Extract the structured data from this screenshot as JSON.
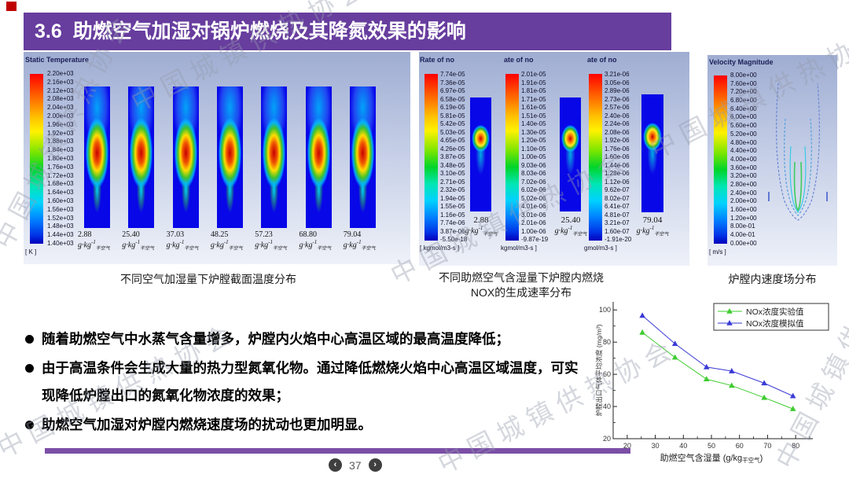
{
  "watermark": {
    "text": "中国城镇供热协会"
  },
  "title": {
    "number": "3.6",
    "text": "助燃空气加湿对锅炉燃烧及其降氮效果的影响"
  },
  "humid_unit": {
    "main": "g·kg",
    "sup": "-1",
    "sub": "干空气"
  },
  "temperature_panel": {
    "header": "Static Temperature",
    "unit": "[ K ]",
    "scale_values": [
      "2.20e+03",
      "2.16e+03",
      "2.12e+03",
      "2.08e+03",
      "2.04e+03",
      "2.00e+03",
      "1.96e+03",
      "1.92e+03",
      "1.88e+03",
      "1.84e+03",
      "1.80e+03",
      "1.76e+03",
      "1.72e+03",
      "1.68e+03",
      "1.64e+03",
      "1.60e+03",
      "1.56e+03",
      "1.52e+03",
      "1.48e+03",
      "1.44e+03",
      "1.40e+03"
    ],
    "columns": [
      "2.88",
      "25.40",
      "37.03",
      "48.25",
      "57.23",
      "68.80",
      "79.04"
    ],
    "caption": "不同空气加湿量下炉膛截面温度分布"
  },
  "rate_panels": [
    {
      "header": "Rate of no",
      "unit": "[ kgmol/m3-s ]",
      "column_value": "2.88",
      "scale_values": [
        "7.74e-05",
        "7.36e-05",
        "6.97e-05",
        "6.58e-05",
        "6.19e-05",
        "5.81e-05",
        "5.42e-05",
        "5.03e-05",
        "4.65e-05",
        "4.26e-05",
        "3.87e-05",
        "3.48e-05",
        "3.10e-05",
        "2.71e-05",
        "2.32e-05",
        "1.94e-05",
        "1.55e-05",
        "1.16e-05",
        "7.74e-06",
        "3.87e-06",
        "-5.50e-18"
      ]
    },
    {
      "header": "ate of no",
      "unit": "kgmol/m3-s ]",
      "column_value": "25.40",
      "scale_values": [
        "2.01e-05",
        "1.91e-05",
        "1.81e-05",
        "1.71e-05",
        "1.61e-05",
        "1.51e-05",
        "1.40e-05",
        "1.30e-05",
        "1.20e-05",
        "1.10e-05",
        "1.00e-05",
        "9.03e-06",
        "8.03e-06",
        "7.02e-06",
        "6.02e-06",
        "5.02e-06",
        "4.01e-06",
        "3.01e-06",
        "2.01e-06",
        "1.00e-06",
        "-9.87e-19"
      ]
    },
    {
      "header": "ate of no",
      "unit": "gmol/m3-s ]",
      "column_value": "79.04",
      "scale_values": [
        "3.21e-06",
        "3.05e-06",
        "2.89e-06",
        "2.73e-06",
        "2.57e-06",
        "2.40e-06",
        "2.24e-06",
        "2.08e-06",
        "1.92e-06",
        "1.76e-06",
        "1.60e-06",
        "1.44e-06",
        "1.28e-06",
        "1.12e-06",
        "9.62e-07",
        "8.02e-07",
        "6.41e-07",
        "4.81e-07",
        "3.21e-07",
        "1.60e-07",
        "-1.91e-20"
      ]
    }
  ],
  "rate_caption": {
    "line1": "不同助燃空气含湿量下炉膛内燃烧",
    "line2": "NOX的生成速率分布"
  },
  "velocity_panel": {
    "header": "Velocity Magnitude",
    "unit": "[ m/s ]",
    "scale_values": [
      "8.00e+00",
      "7.60e+00",
      "7.20e+00",
      "6.80e+00",
      "6.40e+00",
      "6.00e+00",
      "5.60e+00",
      "5.20e+00",
      "4.80e+00",
      "4.40e+00",
      "4.00e+00",
      "3.60e+00",
      "3.20e+00",
      "2.80e+00",
      "2.40e+00",
      "2.00e+00",
      "1.60e+00",
      "1.20e+00",
      "8.00e-01",
      "4.00e-01",
      "0.00e+00"
    ],
    "caption": "炉膛内速度场分布"
  },
  "bullets": [
    "随着助燃空气中水蒸气含量增多，炉膛内火焰中心高温区域的最高温度降低；",
    "由于高温条件会生成大量的热力型氮氧化物。通过降低燃烧火焰中心高温区域温度，可实现降低炉膛出口的氮氧化物浓度的效果；",
    "助燃空气加湿对炉膛内燃烧速度场的扰动也更加明显。"
  ],
  "chart_data": {
    "type": "line",
    "x": [
      25.4,
      37.03,
      48.25,
      57.23,
      68.8,
      79.04
    ],
    "series": [
      {
        "name": "NOx浓度实验值",
        "color": "#3ecc2e",
        "values": [
          86,
          70.5,
          57,
          53,
          45.5,
          38.5
        ]
      },
      {
        "name": "NOx浓度模拟值",
        "color": "#3a3ad6",
        "values": [
          96.5,
          79,
          64.5,
          62,
          54.5,
          46.5
        ]
      }
    ],
    "xlabel_prefix": "助燃空气含湿量 (g/kg",
    "xlabel_sub": "干空气",
    "xlabel_suffix": ")",
    "ylabel": "炉膛出口气体平均浓度 (mg/m³)",
    "xlim": [
      15,
      85
    ],
    "ylim": [
      20,
      105
    ],
    "xticks": [
      20,
      30,
      40,
      50,
      60,
      70,
      80
    ],
    "yticks": [
      20,
      40,
      60,
      80,
      100
    ],
    "grid": false,
    "legend_position": "top-right"
  },
  "footer": {
    "page": "37",
    "prev": "‹",
    "next": "›"
  }
}
